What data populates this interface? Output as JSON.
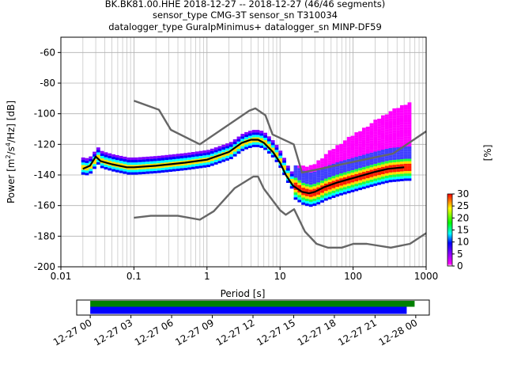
{
  "title": {
    "line1": "BK.BK81.00.HHE   2018-12-27 -- 2018-12-27  (46/46 segments)",
    "line2": "sensor_type CMG-3T sensor_sn T310034",
    "line3": "datalogger_type GuralpMinimus+ datalogger_sn MINP-DF59"
  },
  "chart_data": [
    {
      "type": "heatmap",
      "title": "BK.BK81.00.HHE   2018-12-27 -- 2018-12-27  (46/46 segments)",
      "xlabel": "Period [s]",
      "ylabel": "Power [m^2/s^4/Hz] [dB]",
      "xscale": "log",
      "xlim": [
        0.01,
        1000
      ],
      "ylim": [
        -200,
        -50
      ],
      "xticks": [
        "0.01",
        "0.1",
        "1",
        "10",
        "100",
        "1000"
      ],
      "yticks": [
        "-200",
        "-180",
        "-160",
        "-140",
        "-120",
        "-100",
        "-80",
        "-60"
      ],
      "grid": true,
      "colorbar": {
        "label": "[%]",
        "range": [
          0,
          30
        ],
        "ticks": [
          "0",
          "5",
          "10",
          "15",
          "20",
          "25",
          "30"
        ],
        "colormap": [
          "#ffffff",
          "#ff00ff",
          "#0000ff",
          "#00ffff",
          "#00ff00",
          "#ffff00",
          "#ff0000"
        ]
      },
      "series": [
        {
          "name": "",
          "role": "mode",
          "color": "#000000",
          "x": [
            0.02,
            0.025,
            0.03,
            0.035,
            0.05,
            0.08,
            0.1,
            0.2,
            0.5,
            1,
            2,
            3,
            4,
            5,
            6,
            8,
            10,
            12,
            15,
            20,
            25,
            30,
            40,
            60,
            100,
            200,
            300,
            500
          ],
          "y": [
            -136,
            -134,
            -128,
            -131,
            -133,
            -135,
            -135,
            -134,
            -132,
            -130,
            -125,
            -119,
            -117,
            -117,
            -119,
            -125,
            -132,
            -140,
            -147,
            -151,
            -152,
            -151,
            -148,
            -145,
            -142,
            -138,
            -136,
            -135
          ]
        },
        {
          "name": "",
          "role": "noise-model-high",
          "color": "#666666",
          "x": [
            0.1,
            0.22,
            0.32,
            0.8,
            3.8,
            4.6,
            6.3,
            7.9,
            15.4,
            20,
            354.8,
            1000
          ],
          "y": [
            -91.5,
            -97.4,
            -110.5,
            -120,
            -98,
            -96.5,
            -101,
            -113.5,
            -120,
            -138.5,
            -126,
            -111.5
          ]
        },
        {
          "name": "",
          "role": "noise-model-low",
          "color": "#666666",
          "x": [
            0.1,
            0.17,
            0.4,
            0.8,
            1.24,
            2.4,
            4.3,
            5,
            6,
            10,
            12,
            15.6,
            21.9,
            31.6,
            45,
            70,
            101,
            154,
            328,
            600,
            1000
          ],
          "y": [
            -168,
            -166.7,
            -166.7,
            -169.2,
            -163.7,
            -148.6,
            -141.1,
            -141.1,
            -149,
            -163,
            -166,
            -162.4,
            -177,
            -185,
            -187.5,
            -187.5,
            -185,
            -185,
            -187.5,
            -185,
            -178
          ]
        }
      ]
    },
    {
      "type": "timeline",
      "xlabel": "",
      "xticks": [
        "12-27 00",
        "12-27 03",
        "12-27 06",
        "12-27 09",
        "12-27 12",
        "12-27 15",
        "12-27 18",
        "12-27 21",
        "12-28 00"
      ],
      "xlim": [
        "2018-12-26 23:00",
        "2018-12-28 01:00"
      ],
      "bars": [
        {
          "color": "#008000",
          "start": "2018-12-27 00:00",
          "end": "2018-12-27 23:55"
        },
        {
          "color": "#0000ff",
          "start": "2018-12-27 00:00",
          "end": "2018-12-27 23:20"
        }
      ]
    }
  ]
}
